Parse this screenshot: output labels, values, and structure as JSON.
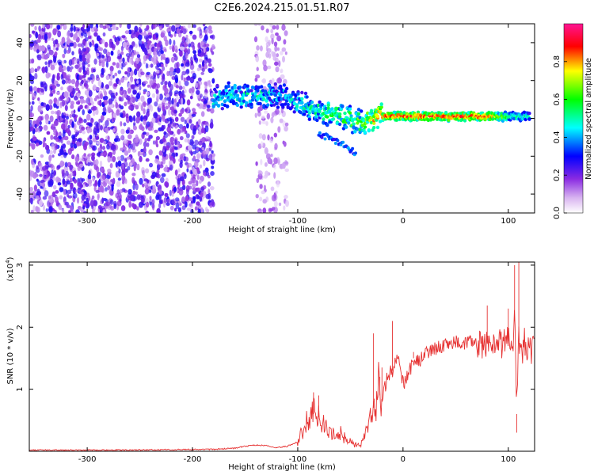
{
  "title": "C2E6.2024.215.01.51.R07",
  "chart_data": [
    {
      "type": "heatmap",
      "title": "C2E6.2024.215.01.51.R07",
      "xlabel": "Height of straight line (km)",
      "ylabel": "Frequency (Hz)",
      "xlim": [
        -355,
        125
      ],
      "ylim": [
        -50,
        50
      ],
      "xticks": [
        -300,
        -200,
        -100,
        0,
        100
      ],
      "yticks": [
        -40,
        -20,
        0,
        20,
        40
      ],
      "colorbar": {
        "label": "Normalized spectral amplitude",
        "range": [
          0.0,
          1.0
        ],
        "ticks": [
          "0.0",
          "0.2",
          "0.4",
          "0.6",
          "0.8"
        ],
        "colormap": [
          "#ffffff",
          "#8a2be2",
          "#0000ff",
          "#00ffff",
          "#00ff00",
          "#ffff00",
          "#ff0000",
          "#ff1493"
        ]
      },
      "regions": [
        {
          "x_range": [
            -355,
            -180
          ],
          "f_range": [
            -50,
            50
          ],
          "amplitude": 0.1,
          "note": "scattered noise"
        },
        {
          "x_range": [
            -140,
            -110
          ],
          "f_range": [
            -50,
            50
          ],
          "amplitude": 0.05,
          "note": "faint noise streaks"
        }
      ],
      "ridge": {
        "x": [
          -180,
          -160,
          -140,
          -120,
          -100,
          -80,
          -60,
          -40,
          -20,
          0,
          20,
          40,
          60,
          80,
          100,
          120
        ],
        "freq": [
          10,
          12,
          11,
          13,
          9,
          4,
          2,
          -2,
          1,
          1,
          1,
          1,
          1,
          1,
          1,
          1
        ],
        "amplitude": [
          0.45,
          0.5,
          0.5,
          0.45,
          0.45,
          0.55,
          0.6,
          0.65,
          0.85,
          0.9,
          0.9,
          0.9,
          0.9,
          0.9,
          0.55,
          0.5
        ]
      },
      "side_branch": {
        "x": [
          -80,
          -60,
          -45
        ],
        "freq": [
          -8,
          -13,
          -18
        ],
        "amplitude": 0.3
      }
    },
    {
      "type": "line",
      "xlabel": "Height of straight line (km)",
      "ylabel": "SNR (10 * v/v)",
      "yscale_label": "(x10",
      "yscale_exp": "4",
      "xlim": [
        -355,
        125
      ],
      "ylim": [
        0,
        3.05
      ],
      "xticks": [
        -300,
        -200,
        -100,
        0,
        100
      ],
      "yticks": [
        1,
        2,
        3
      ],
      "color": "#e63232",
      "series": [
        {
          "x": [
            -355,
            -300,
            -250,
            -200,
            -180,
            -160,
            -150,
            -140,
            -130,
            -120,
            -110,
            -100,
            -95,
            -90,
            -85,
            -80,
            -75,
            -70,
            -65,
            -60,
            -55,
            -50,
            -45,
            -40,
            -35,
            -30,
            -28,
            -26,
            -24,
            -22,
            -20,
            -15,
            -10,
            -5,
            0,
            5,
            10,
            15,
            20,
            30,
            40,
            50,
            60,
            70,
            75,
            80,
            85,
            90,
            95,
            100,
            104,
            106,
            108,
            110,
            112,
            115,
            120,
            125
          ],
          "y": [
            0.02,
            0.02,
            0.02,
            0.03,
            0.03,
            0.05,
            0.08,
            0.1,
            0.09,
            0.06,
            0.08,
            0.15,
            0.35,
            0.5,
            0.6,
            0.55,
            0.4,
            0.3,
            0.25,
            0.3,
            0.2,
            0.15,
            0.1,
            0.12,
            0.3,
            0.55,
            0.7,
            0.6,
            1.2,
            0.9,
            0.8,
            1.2,
            1.3,
            1.5,
            1.1,
            1.2,
            1.5,
            1.45,
            1.55,
            1.65,
            1.72,
            1.75,
            1.75,
            1.75,
            1.7,
            1.75,
            1.7,
            1.72,
            1.75,
            1.78,
            1.7,
            2.1,
            0.6,
            1.9,
            1.5,
            1.75,
            1.65,
            1.62
          ],
          "spikes": {
            "x": [
              -85,
              -80,
              -28,
              -22,
              -20,
              -10,
              10,
              80,
              100,
              106,
              108,
              110
            ],
            "ymax": [
              0.95,
              0.9,
              1.9,
              1.2,
              1.35,
              2.1,
              1.6,
              2.35,
              2.3,
              3.0,
              0.3,
              3.05
            ]
          }
        }
      ]
    }
  ]
}
